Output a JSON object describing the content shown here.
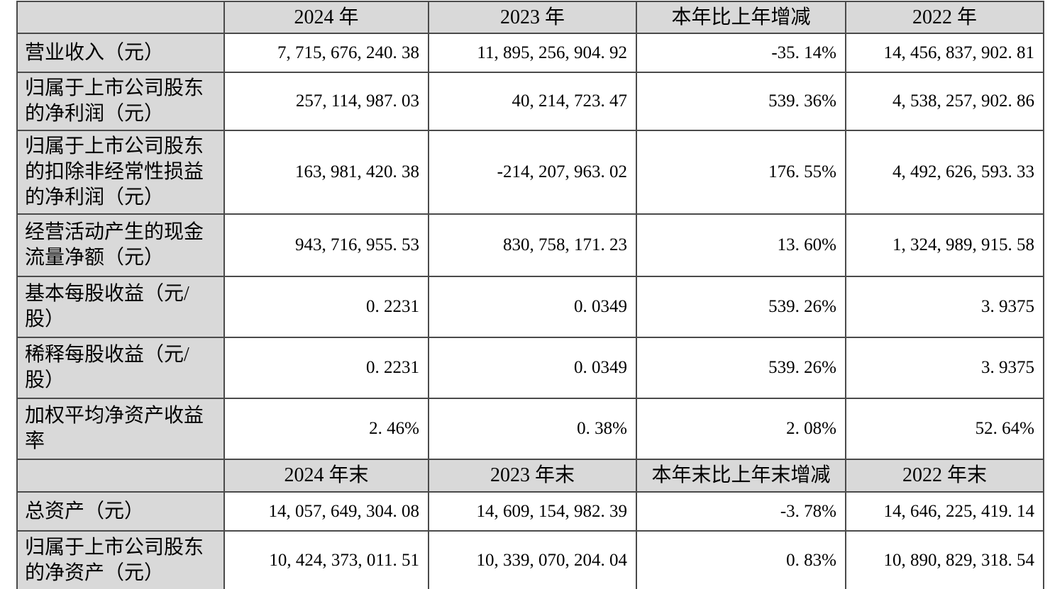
{
  "colors": {
    "shaded_cell_fill": "#d9d9d9",
    "grid_line": "#4a4a4a",
    "text": "#000000",
    "page_background": "#ffffff"
  },
  "sections": [
    {
      "header_cells": [
        "",
        "2024 年",
        "2023 年",
        "本年比上年增减",
        "2022 年"
      ],
      "rows": [
        {
          "label": "营业收入（元）",
          "cells": [
            "7, 715, 676, 240. 38",
            "11, 895, 256, 904. 92",
            "-35. 14%",
            "14, 456, 837, 902. 81"
          ]
        },
        {
          "label": "归属于上市公司股东的净利润（元）",
          "cells": [
            "257, 114, 987. 03",
            "40, 214, 723. 47",
            "539. 36%",
            "4, 538, 257, 902. 86"
          ]
        },
        {
          "label": "归属于上市公司股东的扣除非经常性损益的净利润（元）",
          "cells": [
            "163, 981, 420. 38",
            "-214, 207, 963. 02",
            "176. 55%",
            "4, 492, 626, 593. 33"
          ]
        },
        {
          "label": "经营活动产生的现金流量净额（元）",
          "cells": [
            "943, 716, 955. 53",
            "830, 758, 171. 23",
            "13. 60%",
            "1, 324, 989, 915. 58"
          ]
        },
        {
          "label": "基本每股收益（元/股）",
          "cells": [
            "0. 2231",
            "0. 0349",
            "539. 26%",
            "3. 9375"
          ]
        },
        {
          "label": "稀释每股收益（元/股）",
          "cells": [
            "0. 2231",
            "0. 0349",
            "539. 26%",
            "3. 9375"
          ]
        },
        {
          "label": "加权平均净资产收益率",
          "cells": [
            "2. 46%",
            "0. 38%",
            "2. 08%",
            "52. 64%"
          ]
        }
      ]
    },
    {
      "header_cells": [
        "",
        "2024 年末",
        "2023 年末",
        "本年末比上年末增减",
        "2022 年末"
      ],
      "rows": [
        {
          "label": "总资产（元）",
          "cells": [
            "14, 057, 649, 304. 08",
            "14, 609, 154, 982. 39",
            "-3. 78%",
            "14, 646, 225, 419. 14"
          ]
        },
        {
          "label": "归属于上市公司股东的净资产（元）",
          "cells": [
            "10, 424, 373, 011. 51",
            "10, 339, 070, 204. 04",
            "0. 83%",
            "10, 890, 829, 318. 54"
          ]
        }
      ]
    }
  ]
}
